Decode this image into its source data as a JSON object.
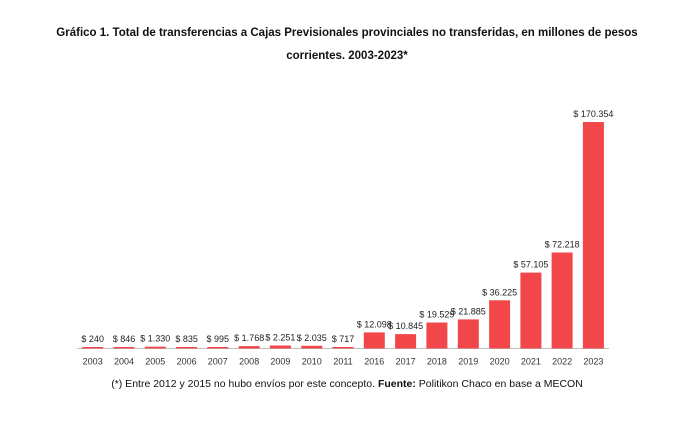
{
  "chart_data": {
    "type": "bar",
    "title_line1": "Gráfico 1. Total de transferencias a Cajas Previsionales provinciales no transferidas, en millones de pesos",
    "title_line2": "corrientes. 2003-2023*",
    "categories": [
      "2003",
      "2004",
      "2005",
      "2006",
      "2007",
      "2008",
      "2009",
      "2010",
      "2011",
      "2016",
      "2017",
      "2018",
      "2019",
      "2020",
      "2021",
      "2022",
      "2023"
    ],
    "values": [
      240,
      846,
      1330,
      835,
      995,
      1768,
      2251,
      2035,
      717,
      12098,
      10845,
      19529,
      21885,
      36225,
      57105,
      72218,
      170354
    ],
    "data_labels": [
      "$ 240",
      "$ 846",
      "$ 1.330",
      "$ 835",
      "$ 995",
      "$ 1.768",
      "$ 2.251",
      "$ 2.035",
      "$ 717",
      "$ 12.098",
      "$ 10.845",
      "$ 19.529",
      "$ 21.885",
      "$ 36.225",
      "$ 57.105",
      "$ 72.218",
      "$ 170.354"
    ],
    "xlabel": "",
    "ylabel": "",
    "ylim": [
      0,
      170354
    ],
    "grid": false,
    "legend": "none",
    "bar_color": "#f2474a",
    "axis_color": "#bfbfbf"
  },
  "footnote": {
    "prefix": "(*) Entre 2012 y 2015 no hubo envíos por este concepto. ",
    "source_label": "Fuente:",
    "source_text": " Politikon Chaco en base a MECON"
  }
}
